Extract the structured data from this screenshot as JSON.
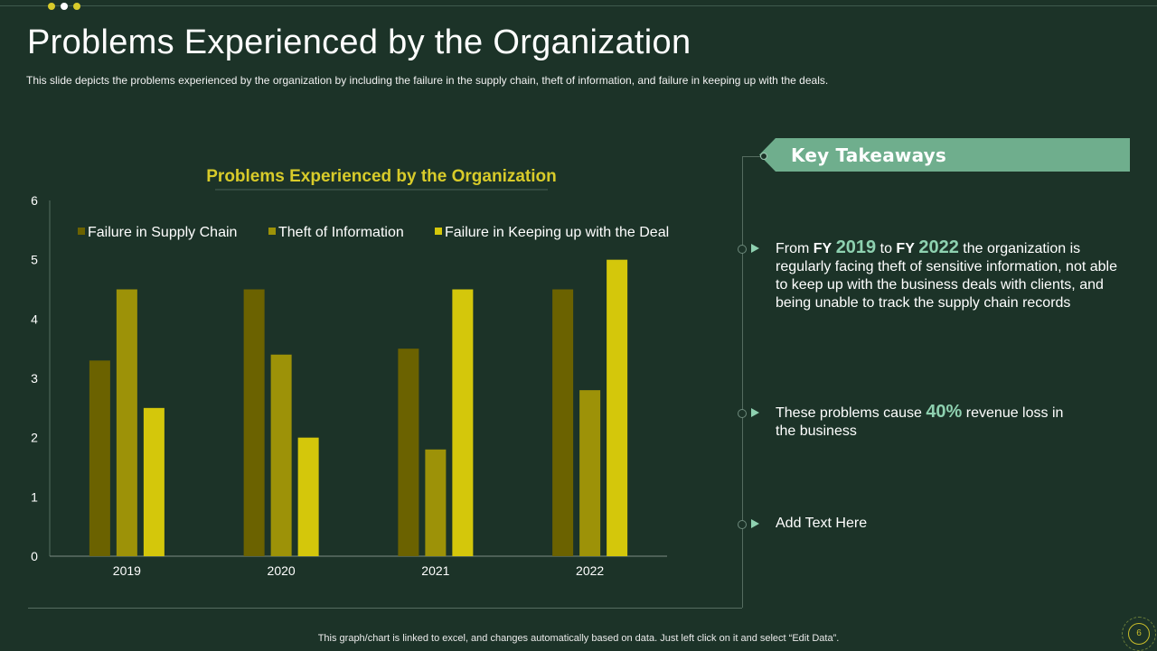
{
  "slide": {
    "title": "Problems Experienced by the Organization",
    "subtitle": "This slide depicts the problems  experienced  by the organization  by including the failure  in the supply chain, theft of information,  and failure  in keeping up with the deals.",
    "footer_note": "This graph/chart is linked to excel,  and changes automatically based on data. Just left click on it and select “Edit Data”.",
    "page_number": "6"
  },
  "takeaways": {
    "title": "Key Takeaways",
    "points": [
      {
        "pre": "From ",
        "fy1_label": "FY",
        "fy1_value": "2019",
        "mid": " to ",
        "fy2_label": "FY",
        "fy2_value": "2022",
        "post": " the organization is regularly facing theft of sensitive information, not able to keep up with the business deals with clients, and being unable to track the supply chain records"
      },
      {
        "pre": "These problems cause ",
        "highlight": "40%",
        "post": " revenue loss in the business"
      },
      {
        "text": "Add Text Here"
      }
    ]
  },
  "colors": {
    "background": "#1c3328",
    "series": [
      "#6b6200",
      "#9d9208",
      "#d4c70b"
    ],
    "chart_title": "#d8cb2a",
    "accent": "#6fae8d",
    "dots": [
      "#d8cb2a",
      "#ffffff",
      "#d8cb2a"
    ]
  },
  "chart_data": {
    "type": "bar",
    "title": "Problems Experienced by the Organization",
    "xlabel": "",
    "ylabel": "",
    "categories": [
      "2019",
      "2020",
      "2021",
      "2022"
    ],
    "series": [
      {
        "name": "Failure in Supply Chain",
        "values": [
          3.3,
          4.5,
          3.5,
          4.5
        ]
      },
      {
        "name": "Theft of Information",
        "values": [
          4.5,
          3.4,
          1.8,
          2.8
        ]
      },
      {
        "name": "Failure in Keeping up with the Deal",
        "values": [
          2.5,
          2.0,
          4.5,
          5.0
        ]
      }
    ],
    "ylim": [
      0,
      6
    ],
    "yticks": [
      "0",
      "1",
      "2",
      "3",
      "4",
      "5",
      "6"
    ],
    "grid": false,
    "legend_position": "top"
  }
}
